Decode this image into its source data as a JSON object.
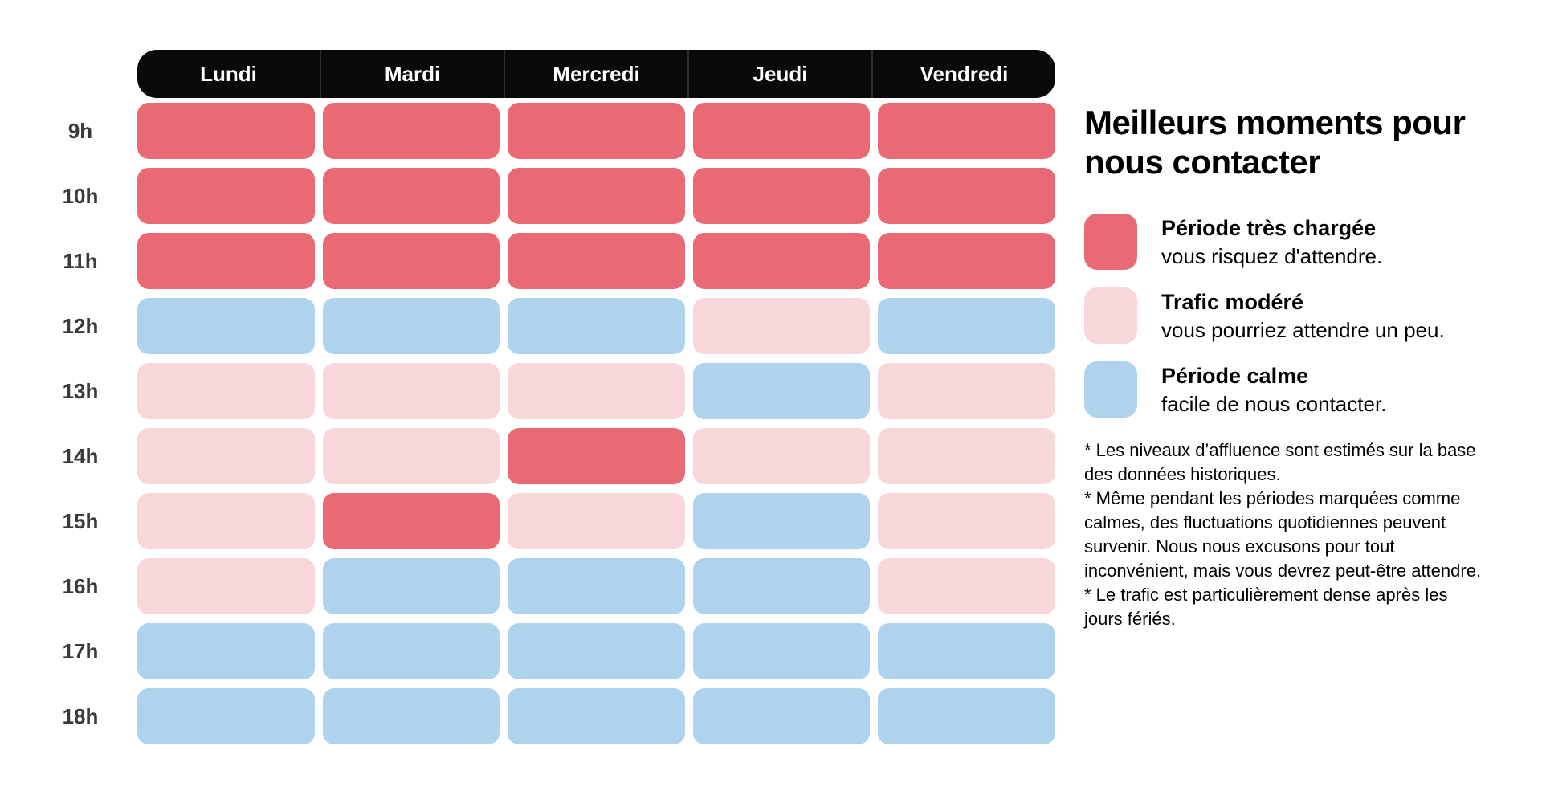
{
  "chart_data": {
    "type": "heatmap",
    "title": "Meilleurs moments pour nous contacter",
    "x_labels": [
      "Lundi",
      "Mardi",
      "Mercredi",
      "Jeudi",
      "Vendredi"
    ],
    "y_labels": [
      "9h",
      "10h",
      "11h",
      "12h",
      "13h",
      "14h",
      "15h",
      "16h",
      "17h",
      "18h"
    ],
    "levels": {
      "busy": "Période très chargée",
      "moderate": "Trafic modéré",
      "calm": "Période calme"
    },
    "values": [
      [
        "busy",
        "busy",
        "busy",
        "busy",
        "busy"
      ],
      [
        "busy",
        "busy",
        "busy",
        "busy",
        "busy"
      ],
      [
        "busy",
        "busy",
        "busy",
        "busy",
        "busy"
      ],
      [
        "calm",
        "calm",
        "calm",
        "moderate",
        "calm"
      ],
      [
        "moderate",
        "moderate",
        "moderate",
        "calm",
        "moderate"
      ],
      [
        "moderate",
        "moderate",
        "busy",
        "moderate",
        "moderate"
      ],
      [
        "moderate",
        "busy",
        "moderate",
        "calm",
        "moderate"
      ],
      [
        "moderate",
        "calm",
        "calm",
        "calm",
        "moderate"
      ],
      [
        "calm",
        "calm",
        "calm",
        "calm",
        "calm"
      ],
      [
        "calm",
        "calm",
        "calm",
        "calm",
        "calm"
      ]
    ],
    "legend_position": "right",
    "grid": "off"
  },
  "panel": {
    "title": "Meilleurs moments pour nous contacter",
    "legend": [
      {
        "key": "busy",
        "label": "Période très chargée",
        "description": "vous risquez d'attendre.",
        "color": "#e96a75"
      },
      {
        "key": "moderate",
        "label": "Trafic modéré",
        "description": "vous pourriez attendre un peu.",
        "color": "#f7d7da"
      },
      {
        "key": "calm",
        "label": "Période calme",
        "description": "facile de nous contacter.",
        "color": "#afd3ec"
      }
    ],
    "footnotes": [
      "* Les niveaux d’affluence sont estimés sur la base des données historiques.",
      "* Même pendant les périodes marquées comme calmes, des fluctuations quotidiennes peuvent survenir. Nous nous excusons pour tout inconvénient, mais vous devrez peut-être attendre.",
      "* Le trafic est particulièrement dense après les jours fériés."
    ]
  },
  "colors": {
    "busy": "#e96a75",
    "moderate": "#f7d7da",
    "calm": "#afd3ec",
    "header_bg": "#0a0a0a",
    "header_text": "#ffffff",
    "hour_label": "#3a3a3a"
  }
}
